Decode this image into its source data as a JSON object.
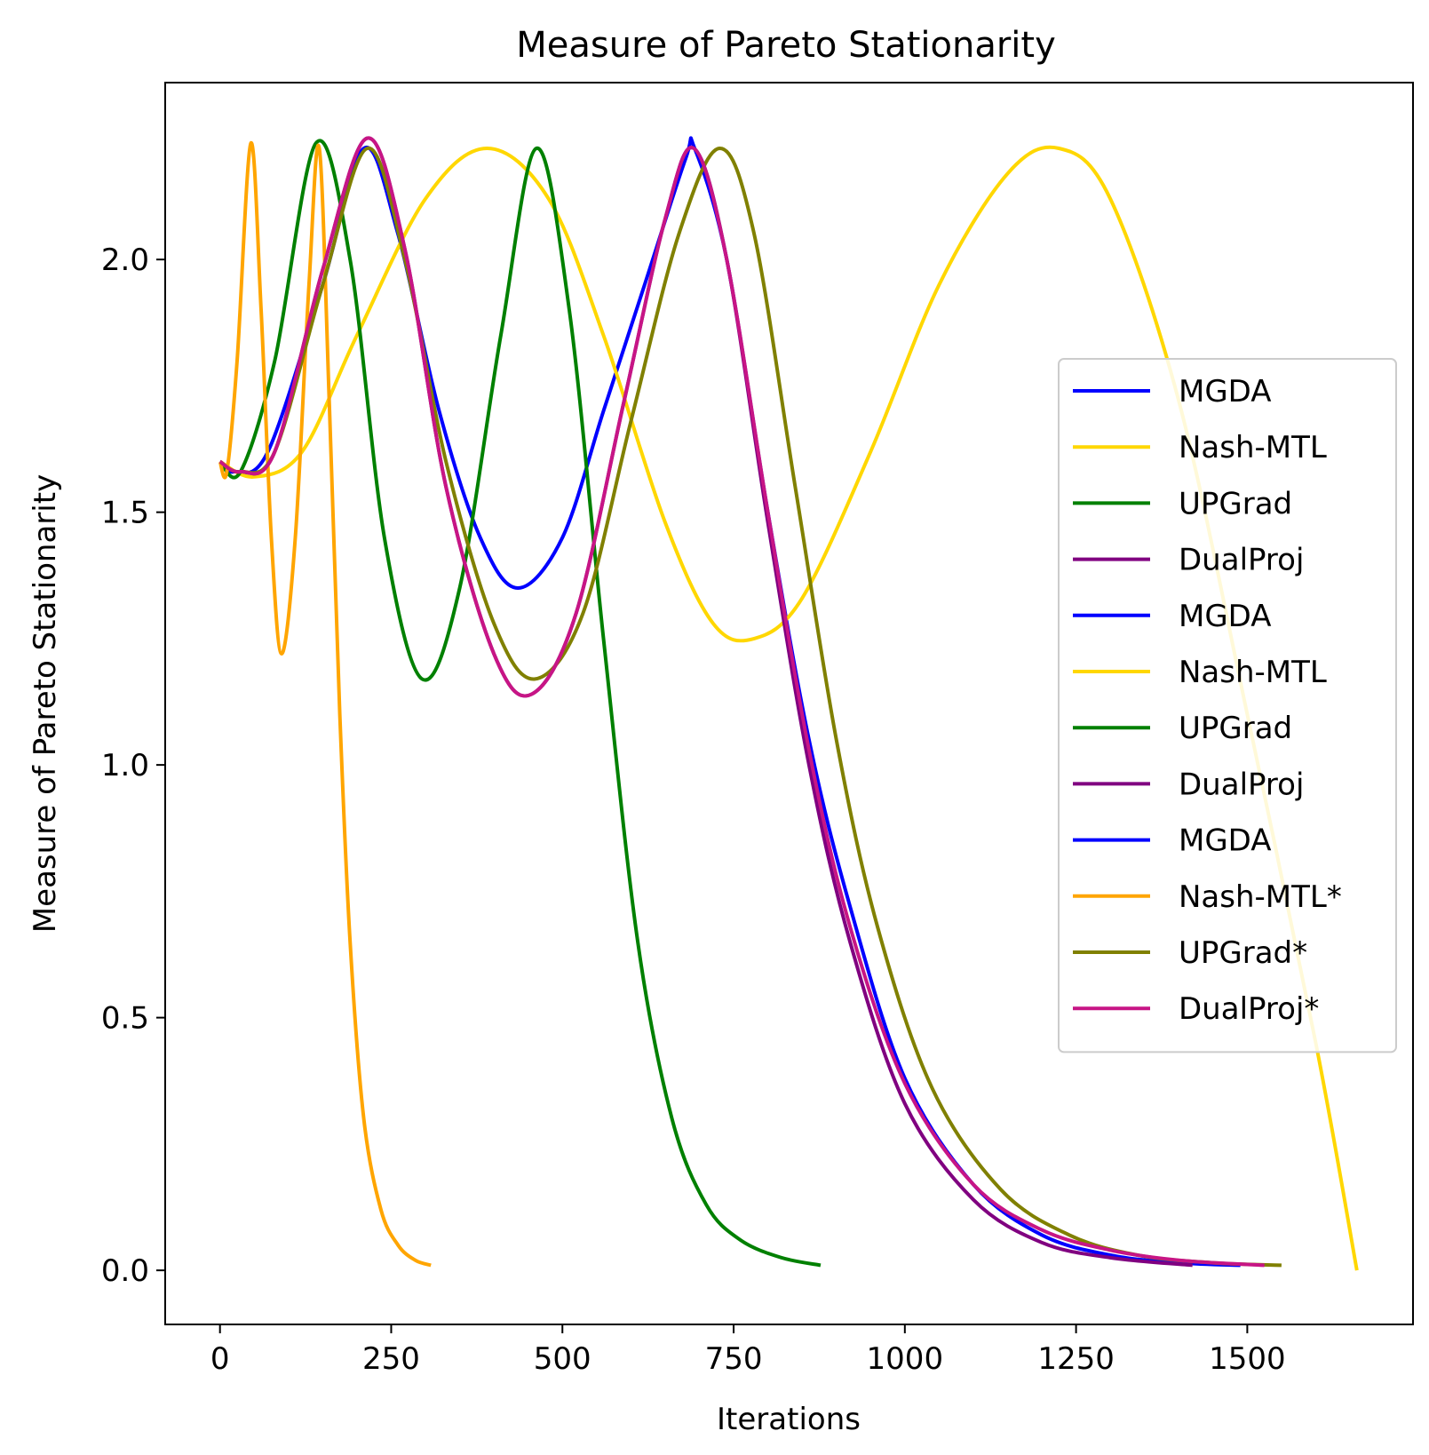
{
  "chart_data": {
    "type": "line",
    "title": "Measure of Pareto Stationarity",
    "xlabel": "Iterations",
    "ylabel": "Measure of Pareto Stationarity",
    "xlim": [
      -80,
      1742
    ],
    "ylim": [
      -0.107,
      2.35
    ],
    "xticks": [
      0,
      250,
      500,
      750,
      1000,
      1250,
      1500
    ],
    "yticks": [
      0.0,
      0.5,
      1.0,
      1.5,
      2.0
    ],
    "xtick_labels": [
      "0",
      "250",
      "500",
      "750",
      "1000",
      "1250",
      "1500"
    ],
    "ytick_labels": [
      "0.0",
      "0.5",
      "1.0",
      "1.5",
      "2.0"
    ],
    "grid": false,
    "legend_position": "center-right",
    "series": [
      {
        "name": "MGDA",
        "color": "#0000ff",
        "x": [
          0,
          20,
          70,
          150,
          210,
          260,
          320,
          380,
          435,
          500,
          560,
          620,
          680,
          693,
          740,
          800,
          860,
          920,
          1000,
          1100,
          1200,
          1300,
          1400,
          1490
        ],
        "y": [
          1.6,
          1.58,
          1.62,
          1.95,
          2.22,
          2.05,
          1.7,
          1.45,
          1.35,
          1.45,
          1.7,
          1.95,
          2.2,
          2.22,
          2.0,
          1.5,
          1.05,
          0.72,
          0.38,
          0.17,
          0.07,
          0.03,
          0.015,
          0.01
        ]
      },
      {
        "name": "Nash-MTL",
        "color": "#ffd700",
        "x": [
          0,
          50,
          120,
          200,
          300,
          390,
          480,
          560,
          650,
          720,
          780,
          850,
          950,
          1050,
          1150,
          1225,
          1300,
          1400,
          1500,
          1600,
          1660
        ],
        "y": [
          1.6,
          1.57,
          1.62,
          1.85,
          2.12,
          2.22,
          2.12,
          1.85,
          1.48,
          1.28,
          1.25,
          1.33,
          1.62,
          1.95,
          2.17,
          2.22,
          2.12,
          1.72,
          1.1,
          0.45,
          0.0
        ]
      },
      {
        "name": "UPGrad",
        "color": "#008000",
        "x": [
          0,
          30,
          80,
          140,
          190,
          240,
          295,
          350,
          410,
          462,
          510,
          560,
          610,
          660,
          710,
          760,
          820,
          877
        ],
        "y": [
          1.6,
          1.58,
          1.8,
          2.23,
          2.0,
          1.45,
          1.17,
          1.35,
          1.85,
          2.22,
          1.9,
          1.25,
          0.65,
          0.3,
          0.13,
          0.06,
          0.025,
          0.01
        ]
      },
      {
        "name": "DualProj",
        "color": "#800080",
        "x": [
          0,
          30,
          80,
          150,
          215,
          270,
          330,
          400,
          455,
          520,
          590,
          650,
          692,
          740,
          800,
          860,
          920,
          1000,
          1100,
          1200,
          1300,
          1420
        ],
        "y": [
          1.6,
          1.58,
          1.62,
          1.98,
          2.24,
          2.02,
          1.55,
          1.22,
          1.14,
          1.3,
          1.72,
          2.08,
          2.22,
          2.0,
          1.48,
          1.0,
          0.65,
          0.33,
          0.14,
          0.055,
          0.025,
          0.01
        ]
      },
      {
        "name": "MGDA",
        "color": "#0000ff",
        "x": [],
        "y": []
      },
      {
        "name": "Nash-MTL",
        "color": "#ffd700",
        "x": [],
        "y": []
      },
      {
        "name": "UPGrad",
        "color": "#008000",
        "x": [],
        "y": []
      },
      {
        "name": "DualProj",
        "color": "#800080",
        "x": [],
        "y": []
      },
      {
        "name": "MGDA",
        "color": "#0000ff",
        "x": [],
        "y": []
      },
      {
        "name": "Nash-MTL*",
        "color": "#ffa500",
        "x": [
          0,
          10,
          25,
          45,
          60,
          75,
          90,
          110,
          130,
          145,
          160,
          175,
          190,
          210,
          235,
          260,
          285,
          308
        ],
        "y": [
          1.6,
          1.58,
          1.8,
          2.23,
          1.9,
          1.45,
          1.22,
          1.45,
          1.95,
          2.22,
          1.7,
          1.1,
          0.65,
          0.3,
          0.12,
          0.05,
          0.02,
          0.01
        ]
      },
      {
        "name": "UPGrad*",
        "color": "#808000",
        "x": [
          0,
          30,
          80,
          150,
          215,
          270,
          330,
          400,
          460,
          530,
          600,
          670,
          730,
          780,
          840,
          900,
          960,
          1040,
          1140,
          1240,
          1340,
          1450,
          1550
        ],
        "y": [
          1.6,
          1.58,
          1.62,
          1.95,
          2.22,
          2.0,
          1.6,
          1.28,
          1.17,
          1.3,
          1.68,
          2.05,
          2.22,
          2.05,
          1.55,
          1.05,
          0.68,
          0.36,
          0.16,
          0.07,
          0.03,
          0.015,
          0.01
        ]
      },
      {
        "name": "DualProj*",
        "color": "#c71585",
        "x": [
          0,
          30,
          80,
          150,
          215,
          270,
          330,
          400,
          455,
          520,
          590,
          650,
          692,
          740,
          800,
          860,
          920,
          1000,
          1100,
          1200,
          1300,
          1400,
          1525
        ],
        "y": [
          1.6,
          1.58,
          1.62,
          1.98,
          2.24,
          2.02,
          1.55,
          1.22,
          1.14,
          1.3,
          1.72,
          2.08,
          2.22,
          2.0,
          1.5,
          1.03,
          0.68,
          0.37,
          0.17,
          0.08,
          0.04,
          0.02,
          0.01
        ]
      }
    ]
  }
}
